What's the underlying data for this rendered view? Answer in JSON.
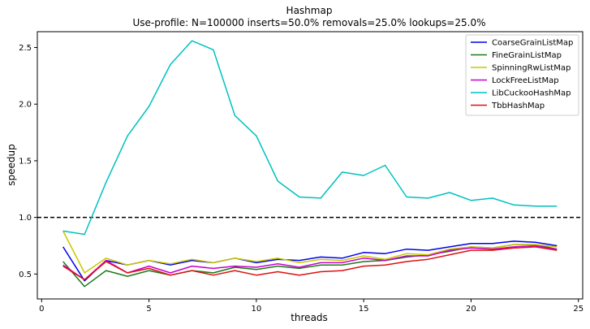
{
  "chart_data": {
    "type": "line",
    "title": "Hashmap",
    "subtitle": "Use-profile: N=100000 inserts=50.0% removals=25.0% lookups=25.0%",
    "xlabel": "threads",
    "ylabel": "speedup",
    "xlim": [
      -0.2,
      25.2
    ],
    "ylim": [
      0.28,
      2.64
    ],
    "xticks": [
      0,
      5,
      10,
      15,
      20,
      25
    ],
    "yticks": [
      0.5,
      1.0,
      1.5,
      2.0,
      2.5
    ],
    "xtick_labels": [
      "0",
      "5",
      "10",
      "15",
      "20",
      "25"
    ],
    "ytick_labels": [
      "0.5",
      "1.0",
      "1.5",
      "2.0",
      "2.5"
    ],
    "grid": false,
    "legend_position": "top-right",
    "reference_line": {
      "y": 1.0,
      "style": "dashed",
      "color": "#000000"
    },
    "x": [
      1,
      2,
      3,
      4,
      5,
      6,
      7,
      8,
      9,
      10,
      11,
      12,
      13,
      14,
      15,
      16,
      17,
      18,
      19,
      20,
      21,
      22,
      23,
      24
    ],
    "series": [
      {
        "name": "CoarseGrainListMap",
        "color": "#0000ee",
        "values": [
          0.74,
          0.44,
          0.62,
          0.58,
          0.62,
          0.58,
          0.62,
          0.6,
          0.64,
          0.6,
          0.63,
          0.62,
          0.65,
          0.64,
          0.69,
          0.68,
          0.72,
          0.71,
          0.74,
          0.77,
          0.77,
          0.79,
          0.78,
          0.75
        ]
      },
      {
        "name": "FineGrainListMap",
        "color": "#1a7a1a",
        "values": [
          0.61,
          0.39,
          0.53,
          0.48,
          0.53,
          0.49,
          0.53,
          0.51,
          0.56,
          0.54,
          0.57,
          0.55,
          0.58,
          0.58,
          0.61,
          0.62,
          0.65,
          0.67,
          0.7,
          0.74,
          0.73,
          0.76,
          0.76,
          0.72
        ]
      },
      {
        "name": "SpinningRwListMap",
        "color": "#c8c800",
        "values": [
          0.88,
          0.51,
          0.64,
          0.58,
          0.62,
          0.59,
          0.63,
          0.6,
          0.64,
          0.61,
          0.64,
          0.6,
          0.63,
          0.62,
          0.66,
          0.63,
          0.68,
          0.67,
          0.72,
          0.74,
          0.73,
          0.76,
          0.76,
          0.74
        ]
      },
      {
        "name": "LockFreeListMap",
        "color": "#cc00cc",
        "values": [
          0.58,
          0.45,
          0.62,
          0.51,
          0.57,
          0.51,
          0.57,
          0.55,
          0.57,
          0.56,
          0.59,
          0.56,
          0.6,
          0.6,
          0.64,
          0.62,
          0.66,
          0.66,
          0.71,
          0.73,
          0.72,
          0.74,
          0.75,
          0.72
        ]
      },
      {
        "name": "LibCuckooHashMap",
        "color": "#00c0c0",
        "values": [
          0.88,
          0.85,
          1.31,
          1.72,
          1.98,
          2.35,
          2.56,
          2.48,
          1.9,
          1.72,
          1.32,
          1.18,
          1.17,
          1.4,
          1.37,
          1.46,
          1.18,
          1.17,
          1.22,
          1.15,
          1.17,
          1.11,
          1.1,
          1.1
        ]
      },
      {
        "name": "TbbHashMap",
        "color": "#dd1111",
        "values": [
          0.57,
          0.45,
          0.61,
          0.51,
          0.55,
          0.49,
          0.53,
          0.49,
          0.53,
          0.49,
          0.52,
          0.49,
          0.52,
          0.53,
          0.57,
          0.58,
          0.61,
          0.63,
          0.67,
          0.71,
          0.71,
          0.73,
          0.74,
          0.71
        ]
      }
    ]
  }
}
